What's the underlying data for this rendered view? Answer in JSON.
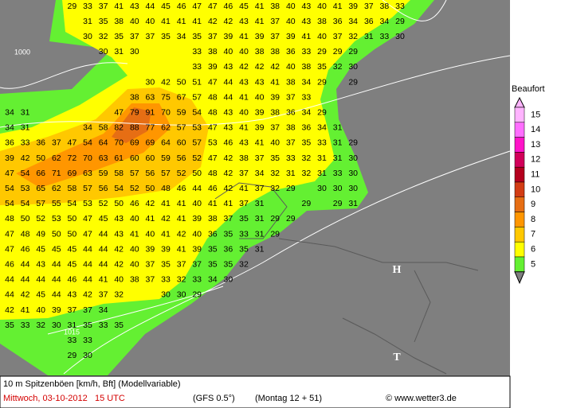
{
  "map": {
    "isobar_labels": [
      "1000",
      "1015"
    ],
    "pressure_markers": [
      "H",
      "T"
    ],
    "grid": {
      "rows": [
        [
          null,
          null,
          null,
          null,
          29,
          33,
          37,
          41,
          43,
          44,
          45,
          46,
          47,
          47,
          46,
          45,
          41,
          38,
          40,
          43,
          40,
          41,
          39,
          37,
          38,
          33
        ],
        [
          null,
          null,
          null,
          null,
          null,
          31,
          35,
          38,
          40,
          40,
          41,
          41,
          41,
          42,
          42,
          43,
          41,
          37,
          40,
          43,
          38,
          36,
          34,
          36,
          34,
          29
        ],
        [
          null,
          null,
          null,
          null,
          null,
          30,
          32,
          35,
          37,
          37,
          35,
          34,
          35,
          37,
          39,
          41,
          39,
          37,
          39,
          41,
          40,
          37,
          32,
          31,
          33,
          30
        ],
        [
          null,
          null,
          null,
          null,
          null,
          null,
          30,
          31,
          30,
          null,
          null,
          null,
          33,
          38,
          40,
          40,
          38,
          38,
          36,
          33,
          29,
          29,
          29
        ],
        [
          null,
          null,
          null,
          null,
          null,
          null,
          null,
          null,
          null,
          null,
          null,
          null,
          33,
          39,
          43,
          42,
          42,
          42,
          40,
          38,
          35,
          32,
          30
        ],
        [
          null,
          null,
          null,
          null,
          null,
          null,
          null,
          null,
          null,
          30,
          42,
          50,
          51,
          47,
          44,
          43,
          43,
          41,
          38,
          34,
          29,
          null,
          29
        ],
        [
          null,
          null,
          null,
          null,
          null,
          null,
          null,
          null,
          38,
          63,
          75,
          67,
          57,
          48,
          44,
          41,
          40,
          39,
          37,
          33
        ],
        [
          34,
          31,
          null,
          null,
          null,
          null,
          null,
          47,
          79,
          91,
          70,
          59,
          54,
          48,
          43,
          40,
          39,
          38,
          36,
          34,
          29
        ],
        [
          34,
          31,
          null,
          null,
          null,
          34,
          58,
          82,
          88,
          77,
          62,
          57,
          53,
          47,
          43,
          41,
          39,
          37,
          38,
          36,
          34,
          31
        ],
        [
          36,
          33,
          36,
          37,
          47,
          54,
          64,
          70,
          69,
          69,
          64,
          60,
          57,
          53,
          46,
          43,
          41,
          40,
          37,
          35,
          33,
          31,
          29
        ],
        [
          39,
          42,
          50,
          62,
          72,
          70,
          63,
          61,
          60,
          60,
          59,
          56,
          52,
          47,
          42,
          38,
          37,
          35,
          33,
          32,
          31,
          31,
          30
        ],
        [
          47,
          54,
          66,
          71,
          69,
          63,
          59,
          58,
          57,
          56,
          57,
          52,
          50,
          48,
          42,
          37,
          34,
          32,
          31,
          32,
          31,
          33,
          30
        ],
        [
          54,
          53,
          65,
          62,
          58,
          57,
          56,
          54,
          52,
          50,
          48,
          46,
          44,
          46,
          42,
          41,
          37,
          32,
          29,
          null,
          30,
          30,
          30
        ],
        [
          54,
          54,
          57,
          55,
          54,
          53,
          52,
          50,
          46,
          42,
          41,
          41,
          40,
          41,
          41,
          37,
          31,
          null,
          null,
          29,
          null,
          29,
          31
        ],
        [
          48,
          50,
          52,
          53,
          50,
          47,
          45,
          43,
          40,
          41,
          42,
          41,
          39,
          38,
          37,
          35,
          31,
          29,
          29
        ],
        [
          47,
          48,
          49,
          50,
          50,
          47,
          44,
          43,
          41,
          40,
          41,
          42,
          40,
          36,
          35,
          33,
          31,
          29
        ],
        [
          47,
          46,
          45,
          45,
          45,
          44,
          44,
          42,
          40,
          39,
          39,
          41,
          39,
          35,
          36,
          35,
          31
        ],
        [
          46,
          44,
          43,
          44,
          45,
          44,
          44,
          42,
          40,
          37,
          35,
          37,
          37,
          35,
          35,
          32
        ],
        [
          44,
          44,
          44,
          44,
          46,
          44,
          41,
          40,
          38,
          37,
          33,
          32,
          33,
          34,
          30
        ],
        [
          44,
          42,
          45,
          44,
          43,
          42,
          37,
          32,
          null,
          null,
          30,
          30,
          29
        ],
        [
          42,
          41,
          40,
          39,
          37,
          37,
          34
        ],
        [
          35,
          33,
          32,
          30,
          31,
          35,
          33,
          35
        ],
        [
          null,
          null,
          null,
          null,
          33,
          33
        ],
        [
          null,
          null,
          null,
          null,
          29,
          30
        ]
      ]
    },
    "legend": {
      "title": "Beaufort",
      "items": [
        {
          "label": "15",
          "color": "#ffb4ff"
        },
        {
          "label": "14",
          "color": "#ff6eff"
        },
        {
          "label": "13",
          "color": "#ff14c8"
        },
        {
          "label": "12",
          "color": "#d2005a"
        },
        {
          "label": "11",
          "color": "#b4001e"
        },
        {
          "label": "10",
          "color": "#d23c14"
        },
        {
          "label": "9",
          "color": "#e66e14"
        },
        {
          "label": "8",
          "color": "#ff9600"
        },
        {
          "label": "7",
          "color": "#ffc800"
        },
        {
          "label": "6",
          "color": "#ffff00"
        },
        {
          "label": "5",
          "color": "#64f032"
        }
      ]
    },
    "footer": {
      "line1": "10 m Spitzenböen [km/h, Bft] (Modellvariable)",
      "date": "Mittwoch, 03-10-2012   15 UTC",
      "model": "(GFS 0.5°)",
      "run": "(Montag 12 + 51)",
      "credit": "© www.wetter3.de"
    }
  }
}
